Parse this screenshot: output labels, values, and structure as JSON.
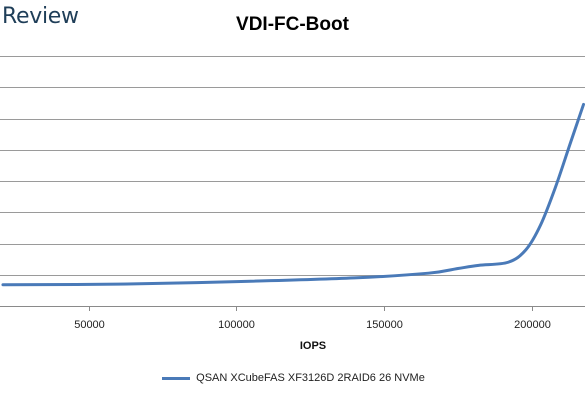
{
  "brand": {
    "text": "Review",
    "color": "#1f3e58"
  },
  "chart_data": {
    "type": "line",
    "title": "VDI-FC-Boot",
    "xlabel": "IOPS",
    "ylabel": "",
    "xlim": [
      20000,
      218000
    ],
    "ylim": [
      0,
      8
    ],
    "x_ticks": [
      50000,
      100000,
      150000,
      200000
    ],
    "y_gridlines": [
      1,
      2,
      3,
      4,
      5,
      6,
      7,
      8
    ],
    "grid": true,
    "legend_position": "bottom",
    "series": [
      {
        "name": "QSAN XCubeFAS XF3126D 2RAID6 26 NVMe",
        "color": "#4a7ab8",
        "x": [
          21000,
          60000,
          100000,
          140000,
          165000,
          175000,
          182000,
          192000,
          198000,
          203000,
          208000,
          213000,
          217500
        ],
        "y": [
          0.68,
          0.7,
          0.78,
          0.9,
          1.05,
          1.2,
          1.3,
          1.4,
          1.8,
          2.6,
          3.8,
          5.2,
          6.45
        ]
      }
    ]
  }
}
